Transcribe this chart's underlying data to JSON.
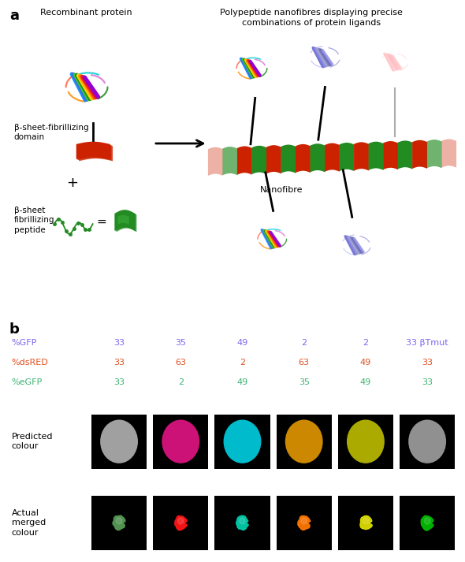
{
  "panel_a_label": "a",
  "panel_b_label": "b",
  "title_left": "Recombinant protein",
  "title_right": "Polypeptide nanofibres displaying precise\ncombinations of protein ligands",
  "label_domain": "β-sheet-fibrillizing\ndomain",
  "label_peptide": "β-sheet\nfibrillizing\npeptide",
  "label_nanofibre": "Nanofibre",
  "gfp_label": "%GFP",
  "dsred_label": "%dsRED",
  "egfp_label": "%eGFP",
  "gfp_color": "#7B68EE",
  "dsred_color": "#E05020",
  "egfp_color": "#3CB371",
  "gfp_values": [
    "33",
    "35",
    "49",
    "2",
    "2",
    "33 βTmut"
  ],
  "dsred_values": [
    "33",
    "63",
    "2",
    "63",
    "49",
    "33"
  ],
  "egfp_values": [
    "33",
    "2",
    "49",
    "35",
    "49",
    "33"
  ],
  "predicted_label": "Predicted\ncolour",
  "actual_label": "Actual\nmerged\ncolour",
  "predicted_colors": [
    "#A0A0A0",
    "#CC1177",
    "#00BBCC",
    "#CC8800",
    "#AAAA00",
    "#909090"
  ],
  "actual_colors": [
    "#559955",
    "#FF1515",
    "#00CCAA",
    "#FF7700",
    "#DDDD00",
    "#00BB00"
  ],
  "fig_bg": "#FFFFFF"
}
